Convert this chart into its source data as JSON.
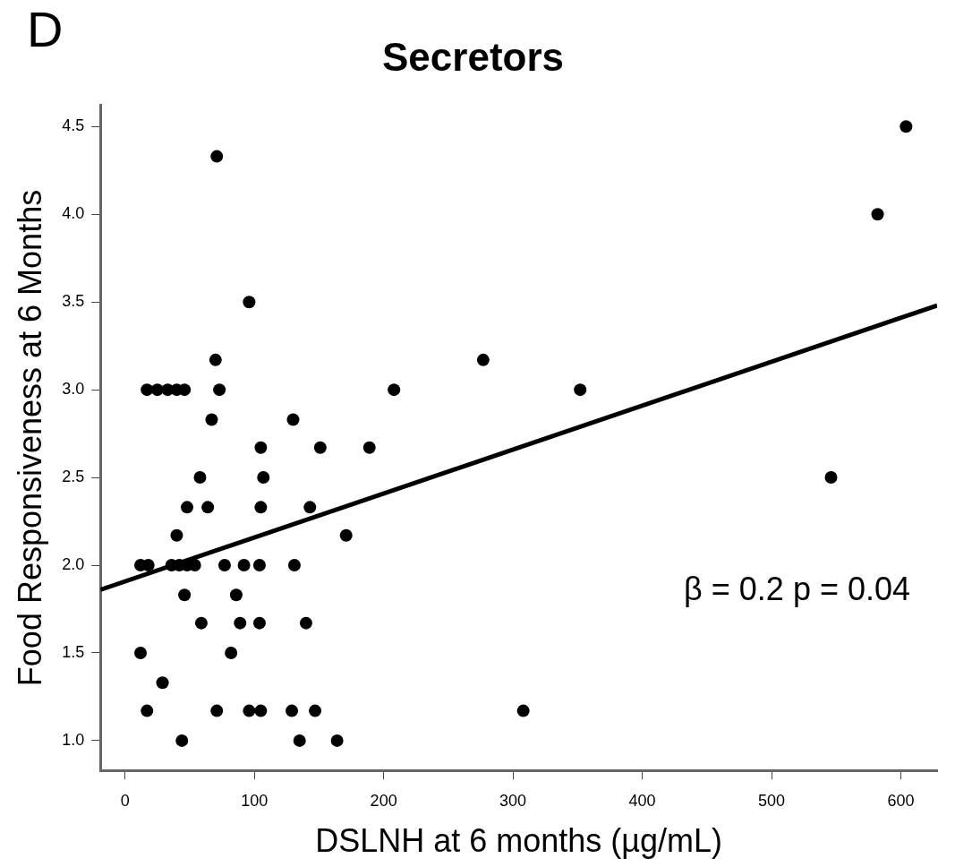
{
  "chart_data": {
    "type": "scatter",
    "title": "Secretors",
    "xlabel": "DSLNH at 6 months (µg/mL)",
    "ylabel": "Food Responsiveness at 6 Months",
    "annotations": [
      "D",
      "β = 0.2 p = 0.04"
    ],
    "xlim": [
      -19,
      628
    ],
    "xticks": [
      0,
      100,
      200,
      300,
      400,
      500,
      600
    ],
    "ylim": [
      0.83,
      4.62
    ],
    "yticks": [
      {
        "value": 1,
        "label": "1.0"
      },
      1.5,
      {
        "value": 2,
        "label": "2.0"
      },
      2.5,
      {
        "value": 3,
        "label": "3.0"
      },
      3.5,
      {
        "value": 4,
        "label": "4.0"
      },
      4.5
    ],
    "grid": false,
    "legend": false,
    "marker": "circle",
    "series": [
      {
        "type": "scatter",
        "color": "#000000",
        "x": [
          71,
          96,
          70,
          17,
          25,
          33,
          40,
          46,
          73,
          208,
          352,
          67,
          130,
          105,
          151,
          189,
          277,
          58,
          107,
          546,
          48,
          64,
          105,
          143,
          40,
          171,
          12,
          18,
          36,
          42,
          48,
          54,
          77,
          92,
          104,
          131,
          46,
          86,
          59,
          89,
          104,
          140,
          12,
          82,
          29,
          17,
          71,
          96,
          105,
          129,
          147,
          308,
          44,
          135,
          164,
          582,
          604
        ],
        "values": [
          4.33,
          3.5,
          3.17,
          3.0,
          3.0,
          3.0,
          3.0,
          3.0,
          3.0,
          3.0,
          3.0,
          2.83,
          2.83,
          2.67,
          2.67,
          2.67,
          3.17,
          2.5,
          2.5,
          2.5,
          2.33,
          2.33,
          2.33,
          2.33,
          2.17,
          2.17,
          2.0,
          2.0,
          2.0,
          2.0,
          2.0,
          2.0,
          2.0,
          2.0,
          2.0,
          2.0,
          1.83,
          1.83,
          1.67,
          1.67,
          1.67,
          1.67,
          1.5,
          1.5,
          1.33,
          1.17,
          1.17,
          1.17,
          1.17,
          1.17,
          1.17,
          1.17,
          1.0,
          1.0,
          1.0,
          4.0,
          4.5
        ]
      },
      {
        "type": "line",
        "color": "#000000",
        "marker": "none",
        "line_style": "solid",
        "x": [
          -19,
          628
        ],
        "values": [
          1.86,
          3.48
        ]
      }
    ]
  }
}
